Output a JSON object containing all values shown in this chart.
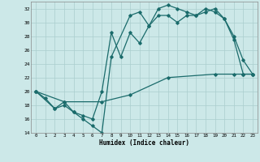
{
  "xlabel": "Humidex (Indice chaleur)",
  "bg_color": "#cce8e8",
  "grid_color": "#aacece",
  "line_color": "#1a6b6b",
  "ylim": [
    14,
    33
  ],
  "xlim": [
    -0.5,
    23.5
  ],
  "yticks": [
    14,
    16,
    18,
    20,
    22,
    24,
    26,
    28,
    30,
    32
  ],
  "xticks": [
    0,
    1,
    2,
    3,
    4,
    5,
    6,
    7,
    8,
    9,
    10,
    11,
    12,
    13,
    14,
    15,
    16,
    17,
    18,
    19,
    20,
    21,
    22,
    23
  ],
  "series1_x": [
    0,
    1,
    2,
    3,
    4,
    5,
    6,
    7,
    8,
    10,
    11,
    12,
    13,
    14,
    15,
    16,
    17,
    18,
    19,
    20,
    21,
    22,
    23
  ],
  "series1_y": [
    20,
    19,
    17.5,
    18,
    17,
    16,
    15,
    14,
    25,
    31,
    31.5,
    29.5,
    32,
    32.5,
    32,
    31.5,
    31,
    31.5,
    32,
    30.5,
    28,
    24.5,
    22.5
  ],
  "series2_x": [
    0,
    2,
    3,
    4,
    5,
    6,
    7,
    8,
    9,
    10,
    11,
    12,
    13,
    14,
    15,
    16,
    17,
    18,
    19,
    20,
    21,
    22,
    23
  ],
  "series2_y": [
    20,
    17.5,
    18.5,
    17,
    16.5,
    16,
    20,
    28.5,
    25,
    28.5,
    27,
    29.5,
    31,
    31,
    30,
    31,
    31,
    32,
    31.5,
    30.5,
    27.5,
    22.5,
    22.5
  ],
  "series3_x": [
    0,
    3,
    7,
    10,
    14,
    19,
    21,
    22,
    23
  ],
  "series3_y": [
    20,
    18.5,
    18.5,
    19.5,
    22,
    22.5,
    22.5,
    22.5,
    22.5
  ]
}
